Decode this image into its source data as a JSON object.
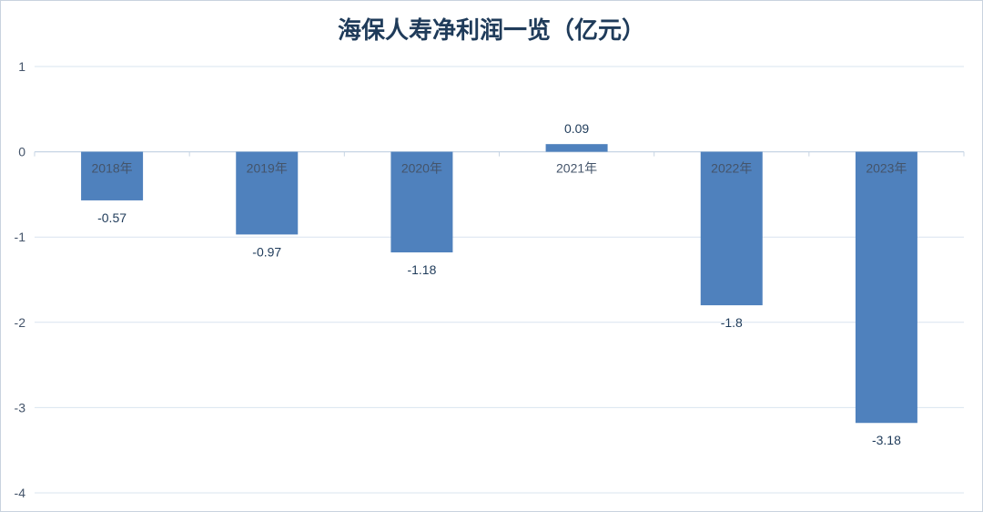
{
  "chart_data": {
    "type": "bar",
    "title": "海保人寿净利润一览（亿元）",
    "xlabel": "",
    "ylabel": "",
    "categories": [
      "2018年",
      "2019年",
      "2020年",
      "2021年",
      "2022年",
      "2023年"
    ],
    "values": [
      -0.57,
      -0.97,
      -1.18,
      0.09,
      -1.8,
      -3.18
    ],
    "data_labels": [
      "-0.57",
      "-0.97",
      "-1.18",
      "0.09",
      "-1.8",
      "-3.18"
    ],
    "ylim": [
      -4,
      1
    ],
    "yticks": [
      1,
      0,
      -1,
      -2,
      -3,
      -4
    ],
    "grid": true,
    "legend": "none",
    "bar_color": "#4f81bd",
    "grid_color": "#d9e4ef"
  }
}
